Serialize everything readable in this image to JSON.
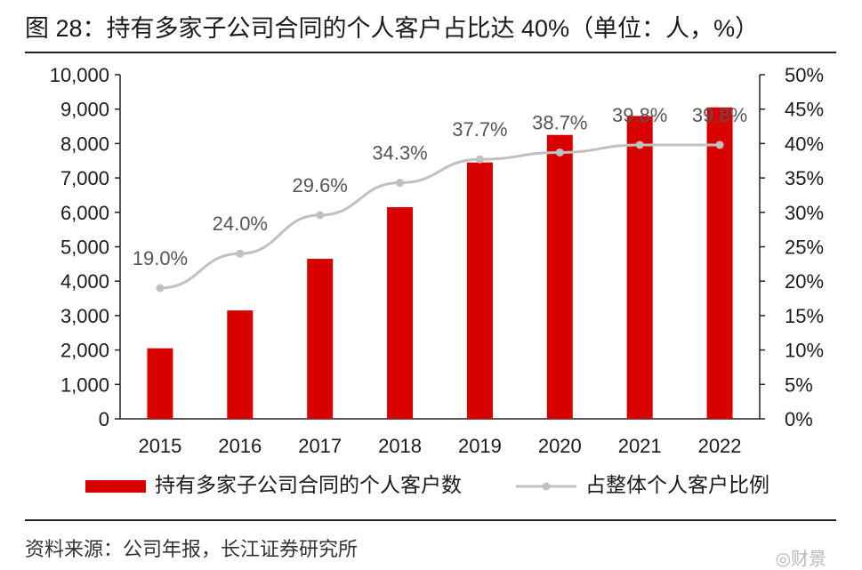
{
  "figure": {
    "title": "图 28：持有多家子公司合同的个人客户占比达 40%（单位：人，%）",
    "source": "资料来源：公司年报，长江证券研究所",
    "watermark": "◎财景"
  },
  "colors": {
    "bar": "#d90000",
    "line": "#c0c0c0",
    "marker": "#c0c0c0",
    "axis": "#222222",
    "text": "#1a1a1a",
    "label": "#555555"
  },
  "chart_data": {
    "type": "bar+line",
    "title": "持有多家子公司合同的个人客户占比达 40%（单位：人，%）",
    "categories": [
      "2015",
      "2016",
      "2017",
      "2018",
      "2019",
      "2020",
      "2021",
      "2022"
    ],
    "series": [
      {
        "name": "持有多家子公司合同的个人客户数",
        "type": "bar",
        "axis": "left",
        "values": [
          2050,
          3150,
          4650,
          6150,
          7450,
          8250,
          8800,
          9050
        ]
      },
      {
        "name": "占整体个人客户比例",
        "type": "line",
        "axis": "right",
        "values": [
          19.0,
          24.0,
          29.6,
          34.3,
          37.7,
          38.7,
          39.8,
          39.8
        ],
        "labels": [
          "19.0%",
          "24.0%",
          "29.6%",
          "34.3%",
          "37.7%",
          "38.7%",
          "39.8%",
          "39.8%"
        ]
      }
    ],
    "y_left": {
      "min": 0,
      "max": 10000,
      "step": 1000,
      "ticks": [
        "0",
        "1,000",
        "2,000",
        "3,000",
        "4,000",
        "5,000",
        "6,000",
        "7,000",
        "8,000",
        "9,000",
        "10,000"
      ]
    },
    "y_right": {
      "min": 0,
      "max": 50,
      "step": 5,
      "ticks": [
        "0%",
        "5%",
        "10%",
        "15%",
        "20%",
        "25%",
        "30%",
        "35%",
        "40%",
        "45%",
        "50%"
      ]
    },
    "grid": false,
    "legend_position": "bottom"
  }
}
